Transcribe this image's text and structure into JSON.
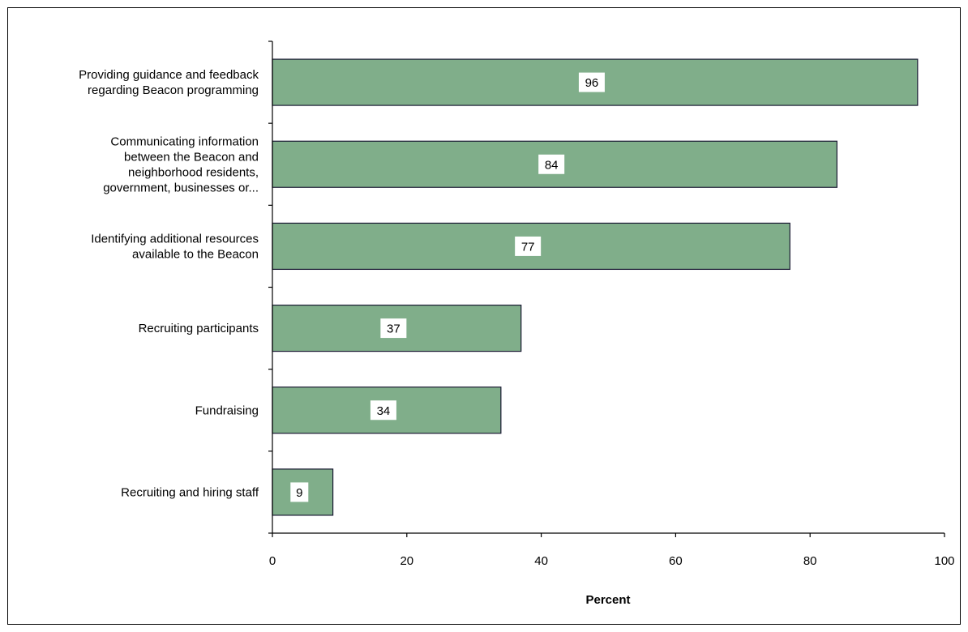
{
  "chart_data": {
    "type": "bar",
    "orientation": "horizontal",
    "title": "",
    "xlabel": "Percent",
    "ylabel": "",
    "xlim": [
      0,
      100
    ],
    "xticks": [
      0,
      20,
      40,
      60,
      80,
      100
    ],
    "grid": false,
    "legend": "none",
    "categories": [
      [
        "Providing guidance and feedback",
        "regarding Beacon programming"
      ],
      [
        "Communicating information",
        "between the Beacon and",
        "neighborhood residents,",
        "government, businesses or..."
      ],
      [
        "Identifying additional resources",
        "available to the Beacon"
      ],
      [
        "Recruiting participants"
      ],
      [
        "Fundraising"
      ],
      [
        "Recruiting and hiring staff"
      ]
    ],
    "values": [
      96,
      84,
      77,
      37,
      34,
      9
    ],
    "data_labels": [
      "96",
      "84",
      "77",
      "37",
      "34",
      "9"
    ]
  },
  "colors": {
    "bar_fill": "#80AE8A",
    "bar_stroke": "#1A1A33",
    "label_box": "#FFFFFF",
    "axis": "#000000"
  }
}
